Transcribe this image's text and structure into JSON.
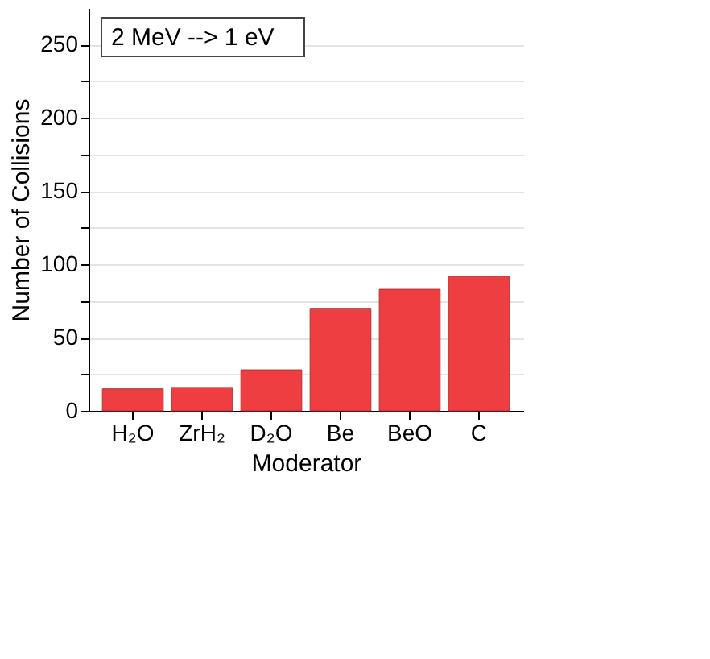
{
  "chart_data": {
    "type": "bar",
    "xlabel": "Moderator",
    "ylabel": "Number of Collisions",
    "categories": [
      "H₂O",
      "ZrH₂",
      "D₂O",
      "Be",
      "BeO",
      "C"
    ],
    "values": [
      15,
      16,
      28,
      70,
      83,
      92
    ],
    "color": "#ef3e42",
    "ylim": [
      0,
      275
    ],
    "yticks": [
      0,
      {
        "value": 25,
        "label": null
      },
      50,
      {
        "value": 75,
        "label": null
      },
      100,
      {
        "value": 125,
        "label": null
      },
      150,
      {
        "value": 175,
        "label": null
      },
      200,
      {
        "value": 225,
        "label": null
      },
      250
    ],
    "grid": "y",
    "annotations": [
      "2 MeV --> 1 eV"
    ]
  }
}
